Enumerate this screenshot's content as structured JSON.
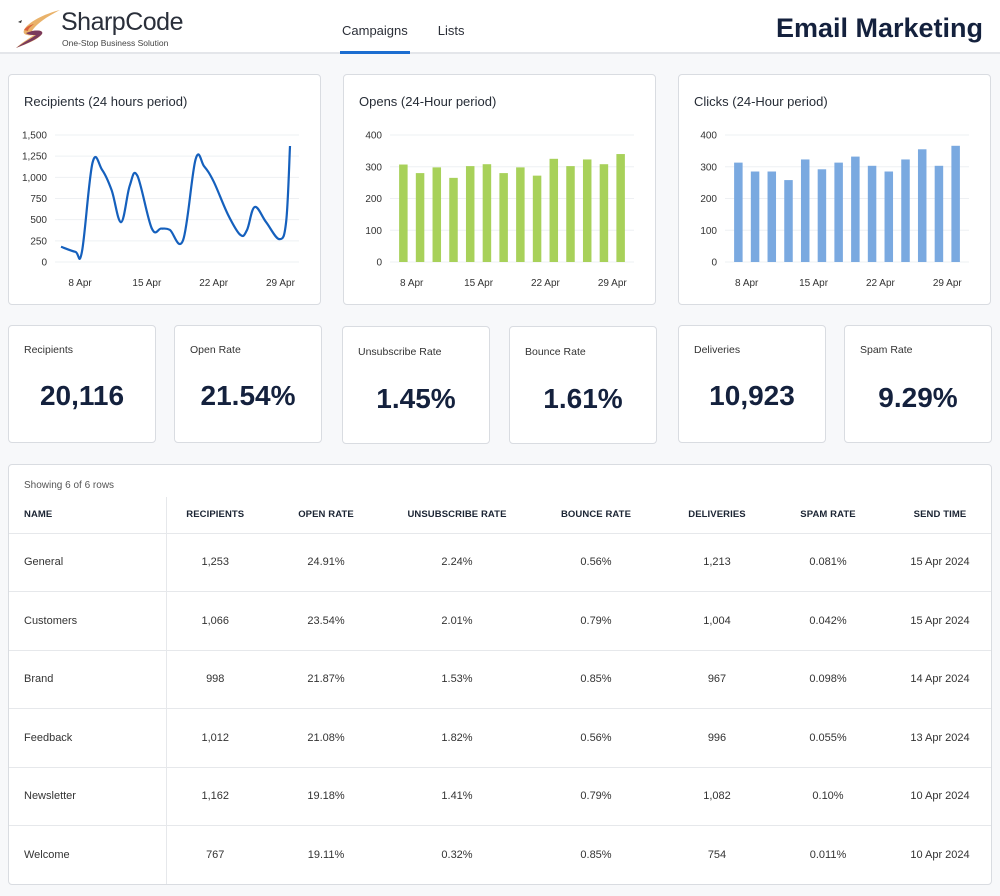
{
  "brand": {
    "name": "SharpCode",
    "tagline": "One-Stop Business Solution"
  },
  "nav": {
    "tabs": [
      {
        "label": "Campaigns",
        "active": true
      },
      {
        "label": "Lists",
        "active": false
      }
    ]
  },
  "page_title": "Email Marketing",
  "colors": {
    "accent": "#1c6dd0",
    "line": "#1560bd",
    "opens_bar": "#a8d15a",
    "clicks_bar": "#7aa9e0",
    "title": "#14213d"
  },
  "chart_data": [
    {
      "type": "line",
      "title": "Recipients (24 hours period)",
      "xlabel": "",
      "ylabel": "",
      "ylim": [
        0,
        1500
      ],
      "yticks": [
        "0",
        "250",
        "500",
        "750",
        "1,000",
        "1,250",
        "1,500"
      ],
      "ytick_values": [
        0,
        250,
        500,
        750,
        1000,
        1250,
        1500
      ],
      "xtick_labels": [
        "8 Apr",
        "15 Apr",
        "22 Apr",
        "29 Apr"
      ],
      "xtick_days": [
        8,
        15,
        22,
        29
      ],
      "xlim_days": [
        6,
        30
      ],
      "grid": true,
      "series": [
        {
          "name": "Recipients",
          "x_days": [
            6.0,
            7.5,
            8.2,
            9.3,
            10.3,
            11.3,
            12.3,
            13.2,
            14.0,
            15.5,
            16.5,
            17.4,
            18.8,
            20.1,
            21.0,
            22.0,
            23.5,
            24.8,
            25.5,
            26.3,
            27.5,
            28.9,
            29.6,
            30.0
          ],
          "values": [
            180,
            120,
            125,
            1170,
            1090,
            850,
            470,
            900,
            1020,
            400,
            395,
            380,
            260,
            1210,
            1130,
            950,
            560,
            320,
            380,
            650,
            470,
            270,
            480,
            1370
          ]
        }
      ]
    },
    {
      "type": "bar",
      "title": "Opens (24-Hour period)",
      "ylim": [
        0,
        400
      ],
      "yticks": [
        "0",
        "100",
        "200",
        "300",
        "400"
      ],
      "ytick_values": [
        0,
        100,
        200,
        300,
        400
      ],
      "xtick_labels": [
        "8 Apr",
        "15 Apr",
        "22 Apr",
        "29 Apr"
      ],
      "xtick_bar_index": [
        0.5,
        4.5,
        8.5,
        12.5
      ],
      "grid": true,
      "values": [
        307,
        280,
        298,
        265,
        302,
        308,
        280,
        298,
        272,
        325,
        302,
        323,
        308,
        340
      ]
    },
    {
      "type": "bar",
      "title": "Clicks (24-Hour period)",
      "ylim": [
        0,
        400
      ],
      "yticks": [
        "0",
        "100",
        "200",
        "300",
        "400"
      ],
      "ytick_values": [
        0,
        100,
        200,
        300,
        400
      ],
      "xtick_labels": [
        "8 Apr",
        "15 Apr",
        "22 Apr",
        "29 Apr"
      ],
      "xtick_bar_index": [
        0.5,
        4.5,
        8.5,
        12.5
      ],
      "grid": true,
      "values": [
        313,
        285,
        285,
        258,
        323,
        292,
        313,
        332,
        303,
        285,
        323,
        355,
        303,
        366
      ]
    }
  ],
  "kpis": [
    {
      "label": "Recipients",
      "value": "20,116"
    },
    {
      "label": "Open Rate",
      "value": "21.54%"
    },
    {
      "label": "Unsubscribe Rate",
      "value": "1.45%"
    },
    {
      "label": "Bounce Rate",
      "value": "1.61%"
    },
    {
      "label": "Deliveries",
      "value": "10,923"
    },
    {
      "label": "Spam Rate",
      "value": "9.29%"
    }
  ],
  "table": {
    "showing": "Showing 6 of 6 rows",
    "columns": [
      "NAME",
      "RECIPIENTS",
      "OPEN RATE",
      "UNSUBSCRIBE RATE",
      "BOUNCE RATE",
      "DELIVERIES",
      "SPAM RATE",
      "SEND TIME"
    ],
    "rows": [
      [
        "General",
        "1,253",
        "24.91%",
        "2.24%",
        "0.56%",
        "1,213",
        "0.081%",
        "15 Apr 2024"
      ],
      [
        "Customers",
        "1,066",
        "23.54%",
        "2.01%",
        "0.79%",
        "1,004",
        "0.042%",
        "15 Apr 2024"
      ],
      [
        "Brand",
        "998",
        "21.87%",
        "1.53%",
        "0.85%",
        "967",
        "0.098%",
        "14 Apr 2024"
      ],
      [
        "Feedback",
        "1,012",
        "21.08%",
        "1.82%",
        "0.56%",
        "996",
        "0.055%",
        "13 Apr 2024"
      ],
      [
        "Newsletter",
        "1,162",
        "19.18%",
        "1.41%",
        "0.79%",
        "1,082",
        "0.10%",
        "10 Apr 2024"
      ],
      [
        "Welcome",
        "767",
        "19.11%",
        "0.32%",
        "0.85%",
        "754",
        "0.011%",
        "10 Apr 2024"
      ]
    ]
  }
}
